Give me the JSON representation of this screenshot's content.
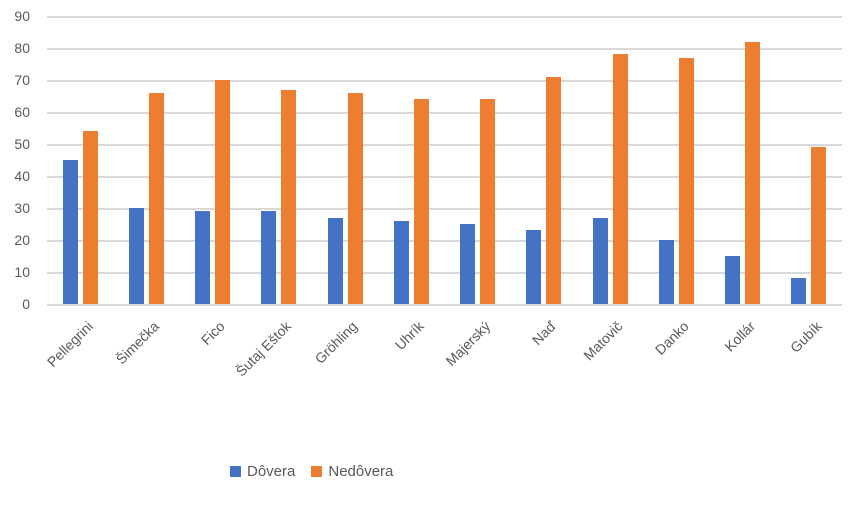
{
  "chart_data": {
    "type": "bar",
    "title": "",
    "categories": [
      "Pellegrini",
      "Šimečka",
      "Fico",
      "Šutaj Eštok",
      "Gröhling",
      "Uhrík",
      "Majerský",
      "Naď",
      "Matovič",
      "Danko",
      "Kollár",
      "Gubík"
    ],
    "series": [
      {
        "name": "Dôvera",
        "color": "#4472C4",
        "values": [
          45,
          30,
          29,
          29,
          27,
          26,
          25,
          23,
          27,
          20,
          15,
          8
        ]
      },
      {
        "name": "Nedôvera",
        "color": "#ED7D31",
        "values": [
          54,
          66,
          70,
          67,
          66,
          64,
          64,
          71,
          78,
          77,
          82,
          49
        ]
      }
    ],
    "xlabel": "",
    "ylabel": "",
    "ylim": [
      0,
      90
    ],
    "yticks": [
      0,
      10,
      20,
      30,
      40,
      50,
      60,
      70,
      80,
      90
    ],
    "grid": true,
    "legend_position": "bottom",
    "colors": {
      "gridline": "#D9D9D9",
      "axis_text": "#595959",
      "background": "#FFFFFF"
    }
  }
}
